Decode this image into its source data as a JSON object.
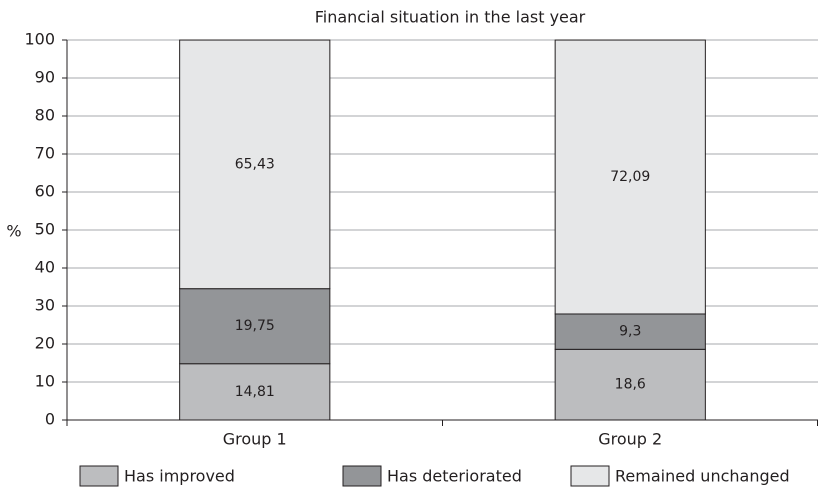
{
  "chart_data": {
    "type": "stacked_bar",
    "title": "Financial situation in the last year",
    "ylabel": "%",
    "categories": [
      "Group 1",
      "Group 2"
    ],
    "series": [
      {
        "name": "Has improved",
        "color": "#bcbdbf",
        "values": [
          14.81,
          18.6
        ],
        "value_labels": [
          "14,81",
          "18,6"
        ]
      },
      {
        "name": "Has deteriorated",
        "color": "#939598",
        "values": [
          19.75,
          9.3
        ],
        "value_labels": [
          "19,75",
          "9,3"
        ]
      },
      {
        "name": "Remained unchanged",
        "color": "#e6e7e8",
        "values": [
          65.43,
          72.09
        ],
        "value_labels": [
          "65,43",
          "72,09"
        ]
      }
    ],
    "ylim": [
      0,
      100
    ],
    "yticks": [
      0,
      10,
      20,
      30,
      40,
      50,
      60,
      70,
      80,
      90,
      100
    ],
    "grid": true,
    "legend": "bottom"
  }
}
